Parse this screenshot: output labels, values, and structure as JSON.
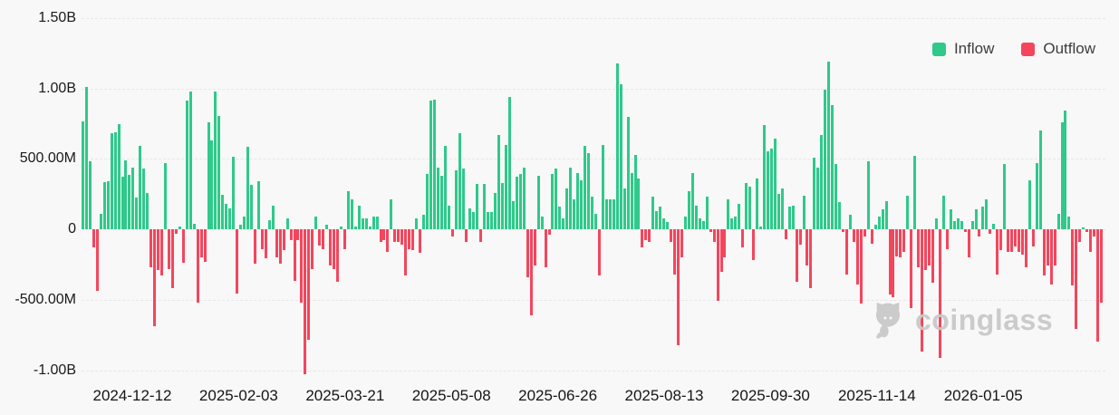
{
  "legend": {
    "items": [
      {
        "label": "Inflow",
        "color": "#2fc98a"
      },
      {
        "label": "Outflow",
        "color": "#f3465d"
      }
    ]
  },
  "watermark": {
    "text": "coinglass",
    "icon": "pig-logo-icon",
    "color": "#c9c9c9"
  },
  "chart_data": {
    "type": "bar",
    "title": "",
    "xlabel": "",
    "ylabel": "",
    "unit": "USD",
    "values_unit": "millions",
    "grid": "dashed horizontal",
    "legend_position": "top-right",
    "ylim": [
      -1060,
      1630
    ],
    "y_ticks": [
      {
        "label": "1.50B",
        "value": 1500
      },
      {
        "label": "1.00B",
        "value": 1000
      },
      {
        "label": "500.00M",
        "value": 500
      },
      {
        "label": "0",
        "value": 0
      },
      {
        "label": "-500.00M",
        "value": -500
      },
      {
        "label": "-1.00B",
        "value": -1000
      }
    ],
    "x_ticks": [
      "2024-12-12",
      "2025-02-03",
      "2025-03-21",
      "2025-05-08",
      "2025-06-26",
      "2025-08-13",
      "2025-09-30",
      "2025-11-14",
      "2026-01-05"
    ],
    "series": [
      {
        "name": "Inflow",
        "color": "#2fc98a",
        "rule": "positive daily values"
      },
      {
        "name": "Outflow",
        "color": "#f3465d",
        "rule": "negative daily values"
      }
    ],
    "values": [
      766,
      1009,
      483,
      -129,
      -440,
      107,
      333,
      343,
      680,
      691,
      747,
      376,
      486,
      386,
      440,
      225,
      590,
      429,
      260,
      -270,
      -690,
      -290,
      -330,
      470,
      -280,
      -420,
      -30,
      20,
      -240,
      910,
      980,
      40,
      -520,
      -200,
      -230,
      760,
      633,
      980,
      803,
      247,
      182,
      150,
      515,
      -457,
      32,
      92,
      586,
      315,
      -242,
      343,
      -139,
      -203,
      64,
      165,
      -200,
      -246,
      -150,
      75,
      -79,
      -365,
      -75,
      -521,
      -1030,
      -783,
      -286,
      92,
      -118,
      -143,
      32,
      -257,
      -285,
      -375,
      20,
      -140,
      270,
      210,
      20,
      170,
      80,
      80,
      20,
      90,
      90,
      -90,
      -80,
      -160,
      210,
      -90,
      -90,
      -110,
      -330,
      -140,
      -150,
      80,
      -170,
      100,
      390,
      910,
      920,
      440,
      380,
      590,
      170,
      -50,
      420,
      680,
      430,
      -90,
      150,
      120,
      320,
      -90,
      320,
      120,
      120,
      260,
      670,
      330,
      600,
      940,
      200,
      370,
      390,
      440,
      -340,
      -610,
      -260,
      380,
      90,
      -270,
      -40,
      390,
      430,
      160,
      80,
      290,
      440,
      210,
      400,
      350,
      590,
      540,
      230,
      110,
      -330,
      600,
      210,
      210,
      210,
      1180,
      1030,
      290,
      800,
      400,
      530,
      360,
      -130,
      -80,
      -90,
      230,
      130,
      160,
      80,
      50,
      -90,
      -320,
      -820,
      -200,
      90,
      270,
      400,
      170,
      80,
      60,
      230,
      -20,
      -90,
      -510,
      -300,
      -200,
      210,
      80,
      90,
      180,
      -130,
      330,
      300,
      -220,
      360,
      20,
      740,
      550,
      570,
      640,
      250,
      290,
      -70,
      160,
      170,
      -370,
      -110,
      240,
      -260,
      -420,
      510,
      440,
      670,
      990,
      1190,
      880,
      460,
      190,
      -20,
      -320,
      100,
      -90,
      -390,
      -530,
      -50,
      480,
      -100,
      30,
      90,
      140,
      200,
      -460,
      -480,
      -190,
      -200,
      -160,
      240,
      -560,
      520,
      -270,
      -870,
      -290,
      -260,
      -380,
      80,
      -910,
      240,
      -140,
      140,
      60,
      80,
      60,
      -20,
      -200,
      60,
      140,
      -50,
      160,
      210,
      -30,
      40,
      -320,
      -150,
      460,
      -160,
      -160,
      -120,
      -160,
      -180,
      -270,
      350,
      -120,
      470,
      700,
      -330,
      -260,
      -390,
      -260,
      110,
      760,
      840,
      90,
      -400,
      -710,
      -90,
      10,
      -20,
      -160,
      -50,
      -800,
      -520
    ]
  }
}
